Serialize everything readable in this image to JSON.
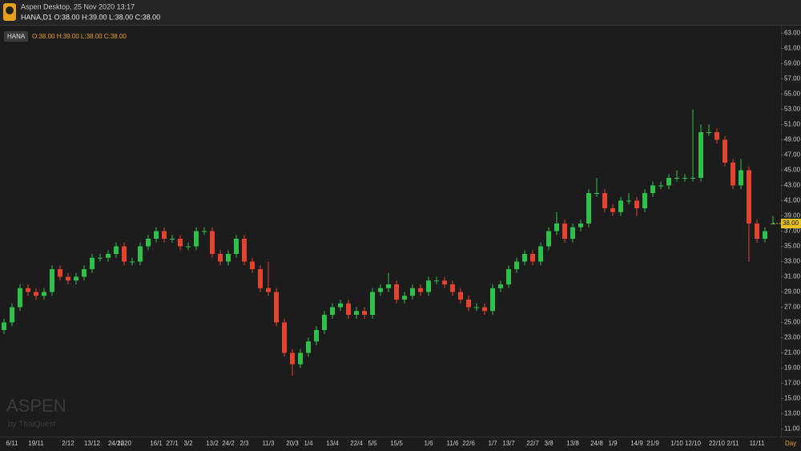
{
  "chart_data": {
    "type": "candlestick",
    "header": {
      "app": "Aspen Desktop, 25 Nov 2020 13:17",
      "quote": "HANA,D1 O:38.00 H:39.00 L:38.00 C:38.00"
    },
    "legend": {
      "symbol": "HANA",
      "ohlc": "O:38.00 H:39.00 L:38.00 C:38.00"
    },
    "watermark": {
      "brand": "ASPEN",
      "by": "by ThaiQuest"
    },
    "x_unit": "Day",
    "last_price": {
      "value": 38,
      "label": "38.00"
    },
    "up_color": "#2fbf4a",
    "down_color": "#e2452f",
    "categories": [
      null,
      "6/11",
      null,
      null,
      "19/11",
      null,
      null,
      null,
      "2/12",
      null,
      null,
      "13/12",
      null,
      null,
      "24/12",
      "2020",
      null,
      null,
      null,
      "16/1",
      null,
      "27/1",
      null,
      "3/2",
      null,
      null,
      "13/2",
      null,
      "24/2",
      null,
      "2/3",
      null,
      null,
      "11/3",
      null,
      null,
      "20/3",
      null,
      "1/4",
      null,
      null,
      "13/4",
      null,
      null,
      "22/4",
      null,
      "5/5",
      null,
      null,
      "15/5",
      null,
      null,
      null,
      "1/6",
      null,
      null,
      "11/6",
      null,
      "22/6",
      null,
      null,
      "1/7",
      null,
      "13/7",
      null,
      null,
      "22/7",
      null,
      "3/8",
      null,
      null,
      "13/8",
      null,
      null,
      "24/8",
      null,
      "1/9",
      null,
      null,
      "14/9",
      null,
      "21/9",
      null,
      null,
      "1/10",
      null,
      "12/10",
      null,
      null,
      "22/10",
      null,
      "2/11",
      null,
      null,
      "11/11",
      null,
      null
    ],
    "open": [
      24,
      25,
      27,
      29.5,
      29,
      28.5,
      29,
      32,
      31,
      30.5,
      31,
      32,
      33.5,
      33.5,
      34,
      35,
      33,
      33,
      35,
      36,
      37,
      36,
      36,
      35,
      35,
      37,
      37,
      34,
      33,
      34,
      36,
      33,
      32,
      29.5,
      29,
      25,
      21,
      19.5,
      21,
      22.5,
      24,
      26,
      27,
      27.5,
      26,
      26.5,
      26,
      29,
      29.5,
      30,
      28,
      28.5,
      29.5,
      29,
      30.5,
      30.5,
      30,
      29,
      28,
      27,
      27,
      26.5,
      29.5,
      30,
      32,
      33,
      34,
      33,
      35,
      37,
      38,
      36,
      37.5,
      38,
      42,
      42,
      40,
      39.5,
      41,
      41,
      40,
      42,
      43,
      43,
      44,
      44,
      44,
      44,
      50,
      50,
      49,
      46,
      43,
      45,
      38,
      36,
      38
    ],
    "high": [
      25.5,
      27.5,
      30,
      30,
      29.5,
      29.5,
      32.5,
      32.5,
      31.5,
      31.5,
      32.5,
      34,
      34,
      34.5,
      35.5,
      35.5,
      33.5,
      35.5,
      36.5,
      37.5,
      37.5,
      36.5,
      36.5,
      35.5,
      37.5,
      37.5,
      37.5,
      34.5,
      34.5,
      36.5,
      36.5,
      33.5,
      32.5,
      33,
      29.5,
      25.5,
      21.5,
      21.5,
      23,
      24.5,
      26.5,
      27.5,
      28,
      28,
      27,
      27,
      29.5,
      30,
      31.5,
      30.5,
      29,
      30,
      30,
      31,
      31,
      31,
      30.5,
      29.5,
      28.5,
      27.5,
      27.5,
      30,
      30.5,
      32.5,
      33.5,
      34.5,
      34.5,
      35.5,
      37.5,
      39.5,
      38.5,
      38,
      38.5,
      42.5,
      44,
      42.5,
      40.5,
      41.5,
      42,
      41.5,
      42.5,
      43.5,
      43.5,
      44.5,
      45,
      44.5,
      53,
      51,
      51,
      50.5,
      49.5,
      46.5,
      46.5,
      45.5,
      38.5,
      37.5,
      39
    ],
    "low": [
      23.5,
      24.5,
      26.5,
      28.5,
      28,
      28,
      28.5,
      30.5,
      30,
      30,
      30.5,
      31.5,
      33,
      33,
      33.5,
      32.5,
      32.5,
      32.5,
      34.5,
      35.5,
      35.5,
      35.5,
      34.5,
      34.5,
      34.5,
      36.5,
      33.5,
      32.5,
      32.5,
      33.5,
      32.5,
      31.5,
      29,
      28.5,
      24.5,
      20.5,
      18,
      19,
      20.5,
      22,
      23.5,
      25.5,
      26.5,
      25.5,
      25.5,
      25.5,
      25.5,
      28.5,
      29,
      27.5,
      27.5,
      28,
      28.5,
      28.5,
      30,
      29.5,
      28.5,
      27.5,
      26.5,
      26.5,
      26,
      26,
      29,
      29.5,
      31.5,
      32.5,
      32.5,
      32.5,
      34.5,
      36.5,
      35.5,
      35.5,
      37,
      37.5,
      41.5,
      39.5,
      39,
      39,
      40.5,
      39,
      39.5,
      41.5,
      42.5,
      42.5,
      43.5,
      43.5,
      43.5,
      43.5,
      49.5,
      48.5,
      45.5,
      42.5,
      42.5,
      33,
      35.5,
      35.5,
      38
    ],
    "close": [
      25,
      27,
      29.5,
      29,
      28.5,
      29,
      32,
      31,
      30.5,
      31,
      32,
      33.5,
      33.5,
      34,
      35,
      33,
      33,
      35,
      36,
      37,
      36,
      36,
      35,
      35,
      37,
      37,
      34,
      33,
      34,
      36,
      33,
      32,
      29.5,
      29,
      25,
      21,
      19.5,
      21,
      22.5,
      24,
      26,
      27,
      27.5,
      26,
      26.5,
      26,
      29,
      29.5,
      30,
      28,
      28.5,
      29.5,
      29,
      30.5,
      30.5,
      30,
      29,
      28,
      27,
      27,
      26.5,
      29.5,
      30,
      32,
      33,
      34,
      33,
      35,
      37,
      38,
      36,
      37.5,
      38,
      42,
      42,
      40,
      39.5,
      41,
      41,
      40,
      42,
      43,
      43,
      44,
      44,
      44,
      44,
      50,
      50,
      49,
      46,
      43,
      45,
      38,
      36,
      37,
      38
    ],
    "ylim": [
      10,
      64
    ],
    "yticks": [
      {
        "value": 11,
        "label": "11.00"
      },
      {
        "value": 13,
        "label": "13.00"
      },
      {
        "value": 15,
        "label": "15.00"
      },
      {
        "value": 17,
        "label": "17.00"
      },
      {
        "value": 19,
        "label": "19.00"
      },
      {
        "value": 21,
        "label": "21.00"
      },
      {
        "value": 23,
        "label": "23.00"
      },
      {
        "value": 25,
        "label": "25.00"
      },
      {
        "value": 27,
        "label": "27.00"
      },
      {
        "value": 29,
        "label": "29.00"
      },
      {
        "value": 31,
        "label": "31.00"
      },
      {
        "value": 33,
        "label": "33.00"
      },
      {
        "value": 35,
        "label": "35.00"
      },
      {
        "value": 37,
        "label": "37.00"
      },
      {
        "value": 39,
        "label": "39.00"
      },
      {
        "value": 41,
        "label": "41.00"
      },
      {
        "value": 43,
        "label": "43.00"
      },
      {
        "value": 45,
        "label": "45.00"
      },
      {
        "value": 47,
        "label": "47.00"
      },
      {
        "value": 49,
        "label": "49.00"
      },
      {
        "value": 51,
        "label": "51.00"
      },
      {
        "value": 53,
        "label": "53.00"
      },
      {
        "value": 55,
        "label": "55.00"
      },
      {
        "value": 57,
        "label": "57.00"
      },
      {
        "value": 59,
        "label": "59.00"
      },
      {
        "value": 61,
        "label": "61.00"
      },
      {
        "value": 63,
        "label": "63.00"
      }
    ],
    "grid": false
  }
}
